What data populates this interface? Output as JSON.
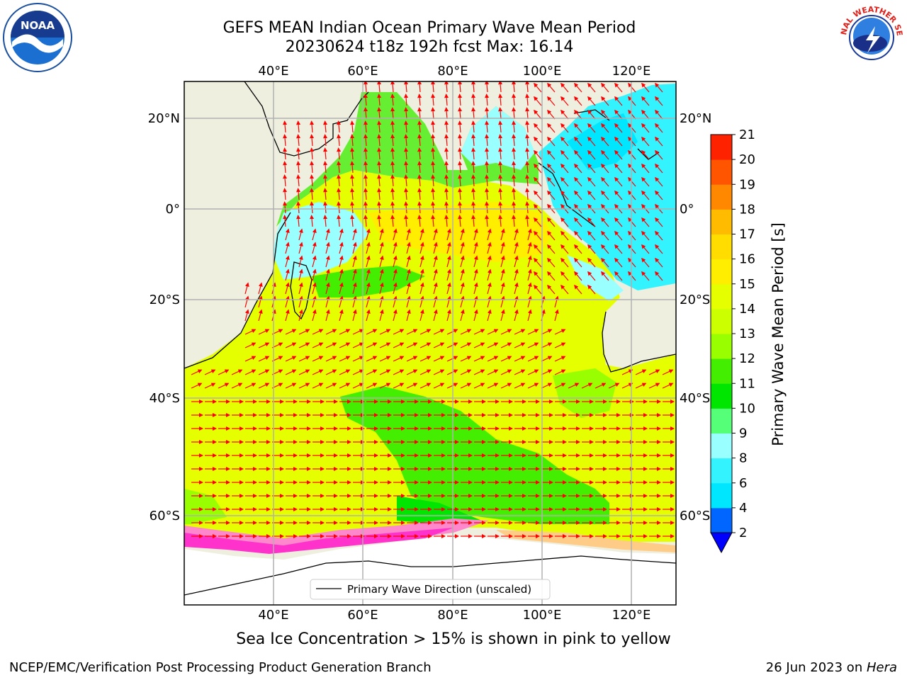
{
  "title": {
    "line1": "GEFS MEAN Indian Ocean Primary Wave Mean Period",
    "line2": "20230624 t18z 192h fcst   Max: 16.14"
  },
  "caption": "Sea Ice Concentration > 15% is shown in pink to yellow",
  "footer": {
    "left": "NCEP/EMC/Verification Post Processing Product Generation Branch",
    "right_prefix": "26 Jun 2023 on ",
    "right_host": "Hera"
  },
  "logos": {
    "left": {
      "icon": "noaa-logo-icon",
      "label": "NOAA"
    },
    "right": {
      "icon": "nws-logo-icon",
      "label": "NATIONAL WEATHER SERVICE"
    }
  },
  "legend": {
    "label": "Primary Wave Direction (unscaled)"
  },
  "colorbar": {
    "label": "Primary Wave Mean Period [s]",
    "ticks": [
      "2",
      "4",
      "6",
      "8",
      "9",
      "10",
      "11",
      "12",
      "13",
      "14",
      "15",
      "16",
      "17",
      "18",
      "19",
      "20",
      "21"
    ],
    "colors": [
      "#0066ff",
      "#00e6ff",
      "#33f3ff",
      "#99ffff",
      "#55ff77",
      "#00e600",
      "#44ee00",
      "#99ff00",
      "#ccff00",
      "#e6ff00",
      "#ffee00",
      "#ffdd00",
      "#ffbb00",
      "#ff8800",
      "#ff5500",
      "#ff2200"
    ],
    "under_color": "#0000ff"
  },
  "chart_data": {
    "type": "heatmap",
    "title": "GEFS MEAN Indian Ocean Primary Wave Mean Period",
    "subtitle": "20230624 t18z 192h fcst   Max: 16.14",
    "variable": "Primary Wave Mean Period",
    "units": "s",
    "max": 16.14,
    "lon_range": [
      20,
      130
    ],
    "lat_range": [
      -74,
      28
    ],
    "x_ticks": [
      {
        "value": 40,
        "label": "40°E"
      },
      {
        "value": 60,
        "label": "60°E"
      },
      {
        "value": 80,
        "label": "80°E"
      },
      {
        "value": 100,
        "label": "100°E"
      },
      {
        "value": 120,
        "label": "120°E"
      }
    ],
    "y_ticks": [
      {
        "value": 20,
        "label": "20°N"
      },
      {
        "value": 0,
        "label": "0°"
      },
      {
        "value": -20,
        "label": "20°S"
      },
      {
        "value": -40,
        "label": "40°S"
      },
      {
        "value": -60,
        "label": "60°S"
      }
    ],
    "grid": true,
    "legend_position": "bottom-center",
    "arrow_color": "#ff0000",
    "land_color": "#efefdf",
    "ice_note": "Sea Ice Concentration > 15% is shown in pink to yellow"
  }
}
